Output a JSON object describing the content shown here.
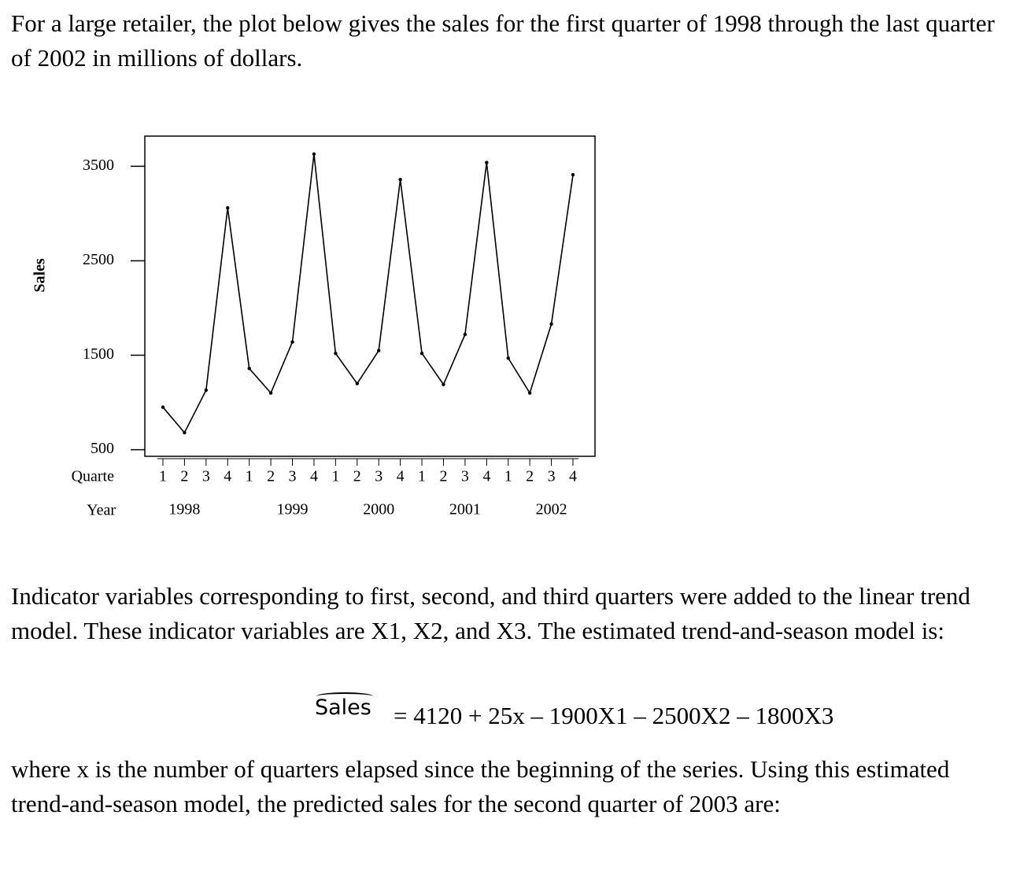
{
  "intro": "For a large retailer, the plot below gives the sales for the first quarter of 1998 through the last quarter of 2002 in millions of dollars.",
  "chart_data": {
    "type": "line",
    "y_label": "Sales",
    "x_label": "Quarte",
    "year_label": "Year",
    "categories": [
      "1",
      "2",
      "3",
      "4",
      "1",
      "2",
      "3",
      "4",
      "1",
      "2",
      "3",
      "4",
      "1",
      "2",
      "3",
      "4",
      "1",
      "2",
      "3",
      "4"
    ],
    "years": [
      null,
      "1998",
      null,
      null,
      null,
      null,
      "1999",
      null,
      null,
      null,
      "2000",
      null,
      null,
      null,
      "2001",
      null,
      null,
      null,
      "2002",
      null
    ],
    "values": [
      950,
      680,
      1130,
      3060,
      1360,
      1100,
      1640,
      3630,
      1520,
      1200,
      1550,
      3360,
      1520,
      1190,
      1720,
      3540,
      1470,
      1100,
      1830,
      3410
    ],
    "color": "#000000",
    "ylim": [
      430,
      3820
    ],
    "yticks": [
      500,
      1500,
      2500,
      3500
    ]
  },
  "paragraph": "Indicator variables corresponding to first, second, and third quarters were added to the linear trend model. These indicator variables are X1, X2, and X3. The estimated trend-and-season model is:",
  "formula": {
    "lhs": "Sales",
    "rhs": "= 4120 + 25x – 1900X1 – 2500X2 – 1800X3"
  },
  "closing": "where x is the number of quarters elapsed since the beginning of the series. Using this estimated trend-and-season model, the predicted sales for the second quarter of 2003 are:"
}
